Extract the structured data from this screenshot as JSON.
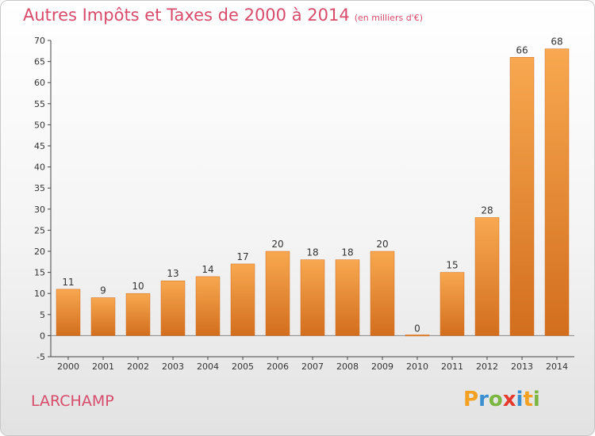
{
  "page": {
    "title": "Autres Impôts et Taxes de 2000 à 2014",
    "subtitle": "(en milliers d'€)",
    "commune": "LARCHAMP",
    "logo": {
      "letters": [
        "P",
        "r",
        "o",
        "x",
        "i",
        "t",
        "i"
      ],
      "colors": [
        "#f4a020",
        "#3a8fd0",
        "#7ab640",
        "#e63a2e",
        "#3a8fd0",
        "#f4a020",
        "#7ab640"
      ]
    }
  },
  "chart_data": {
    "type": "bar",
    "title": "Autres Impôts et Taxes de 2000 à 2014",
    "subtitle": "(en milliers d'€)",
    "categories": [
      "2000",
      "2001",
      "2002",
      "2003",
      "2004",
      "2005",
      "2006",
      "2007",
      "2008",
      "2009",
      "2010",
      "2011",
      "2012",
      "2013",
      "2014"
    ],
    "values": [
      11,
      9,
      10,
      13,
      14,
      17,
      20,
      18,
      18,
      20,
      0,
      15,
      28,
      66,
      68
    ],
    "data_labels": [
      "11",
      "9",
      "10",
      "13",
      "14",
      "17",
      "20",
      "18",
      "18",
      "20",
      "0",
      "15",
      "28",
      "66",
      "68"
    ],
    "ylim": [
      -5,
      70
    ],
    "yticks": [
      -5,
      0,
      5,
      10,
      15,
      20,
      25,
      30,
      35,
      40,
      45,
      50,
      55,
      60,
      65,
      70
    ],
    "xlabel": "",
    "ylabel": "",
    "grid": false,
    "bar_color": "#ee8c36",
    "bar_color_light": "#f8a850",
    "bar_color_dark": "#d26e1e"
  }
}
